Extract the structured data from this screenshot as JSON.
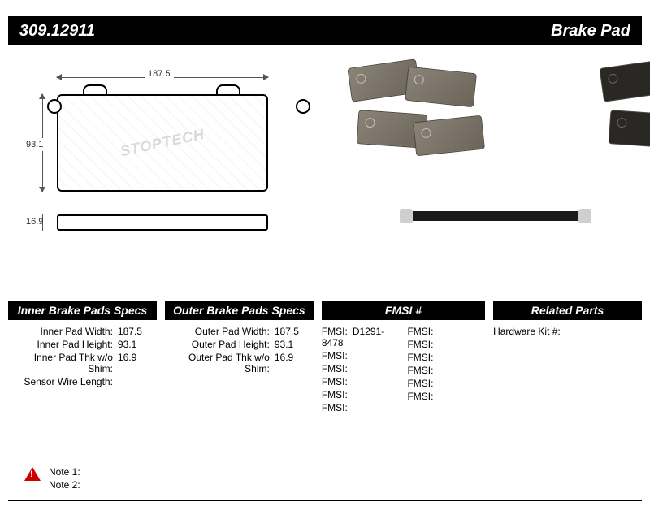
{
  "header": {
    "part_number": "309.12911",
    "category": "Brake Pad"
  },
  "drawing": {
    "width_label": "187.5",
    "height_label": "93.1",
    "thickness_label": "16.9",
    "watermark": "STOPTECH"
  },
  "specs": {
    "inner": {
      "header": "Inner Brake Pads Specs",
      "rows": [
        {
          "label": "Inner Pad Width:",
          "value": "187.5"
        },
        {
          "label": "Inner Pad Height:",
          "value": "93.1"
        },
        {
          "label": "Inner Pad Thk w/o Shim:",
          "value": "16.9"
        },
        {
          "label": "Sensor Wire Length:",
          "value": ""
        }
      ]
    },
    "outer": {
      "header": "Outer Brake Pads Specs",
      "rows": [
        {
          "label": "Outer Pad Width:",
          "value": "187.5"
        },
        {
          "label": "Outer Pad Height:",
          "value": "93.1"
        },
        {
          "label": "Outer Pad Thk w/o Shim:",
          "value": "16.9"
        }
      ]
    },
    "fmsi": {
      "header": "FMSI #",
      "left": [
        {
          "label": "FMSI:",
          "value": "D1291-8478"
        },
        {
          "label": "FMSI:",
          "value": ""
        },
        {
          "label": "FMSI:",
          "value": ""
        },
        {
          "label": "FMSI:",
          "value": ""
        },
        {
          "label": "FMSI:",
          "value": ""
        },
        {
          "label": "FMSI:",
          "value": ""
        }
      ],
      "right": [
        {
          "label": "FMSI:",
          "value": ""
        },
        {
          "label": "FMSI:",
          "value": ""
        },
        {
          "label": "FMSI:",
          "value": ""
        },
        {
          "label": "FMSI:",
          "value": ""
        },
        {
          "label": "FMSI:",
          "value": ""
        },
        {
          "label": "FMSI:",
          "value": ""
        }
      ]
    },
    "related": {
      "header": "Related Parts",
      "rows": [
        {
          "label": "Hardware Kit #:",
          "value": ""
        }
      ]
    }
  },
  "notes": {
    "note1_label": "Note 1:",
    "note1_value": "",
    "note2_label": "Note 2:",
    "note2_value": ""
  },
  "colors": {
    "header_bg": "#000000",
    "header_fg": "#ffffff",
    "page_bg": "#ffffff",
    "warn": "#cc0000"
  }
}
